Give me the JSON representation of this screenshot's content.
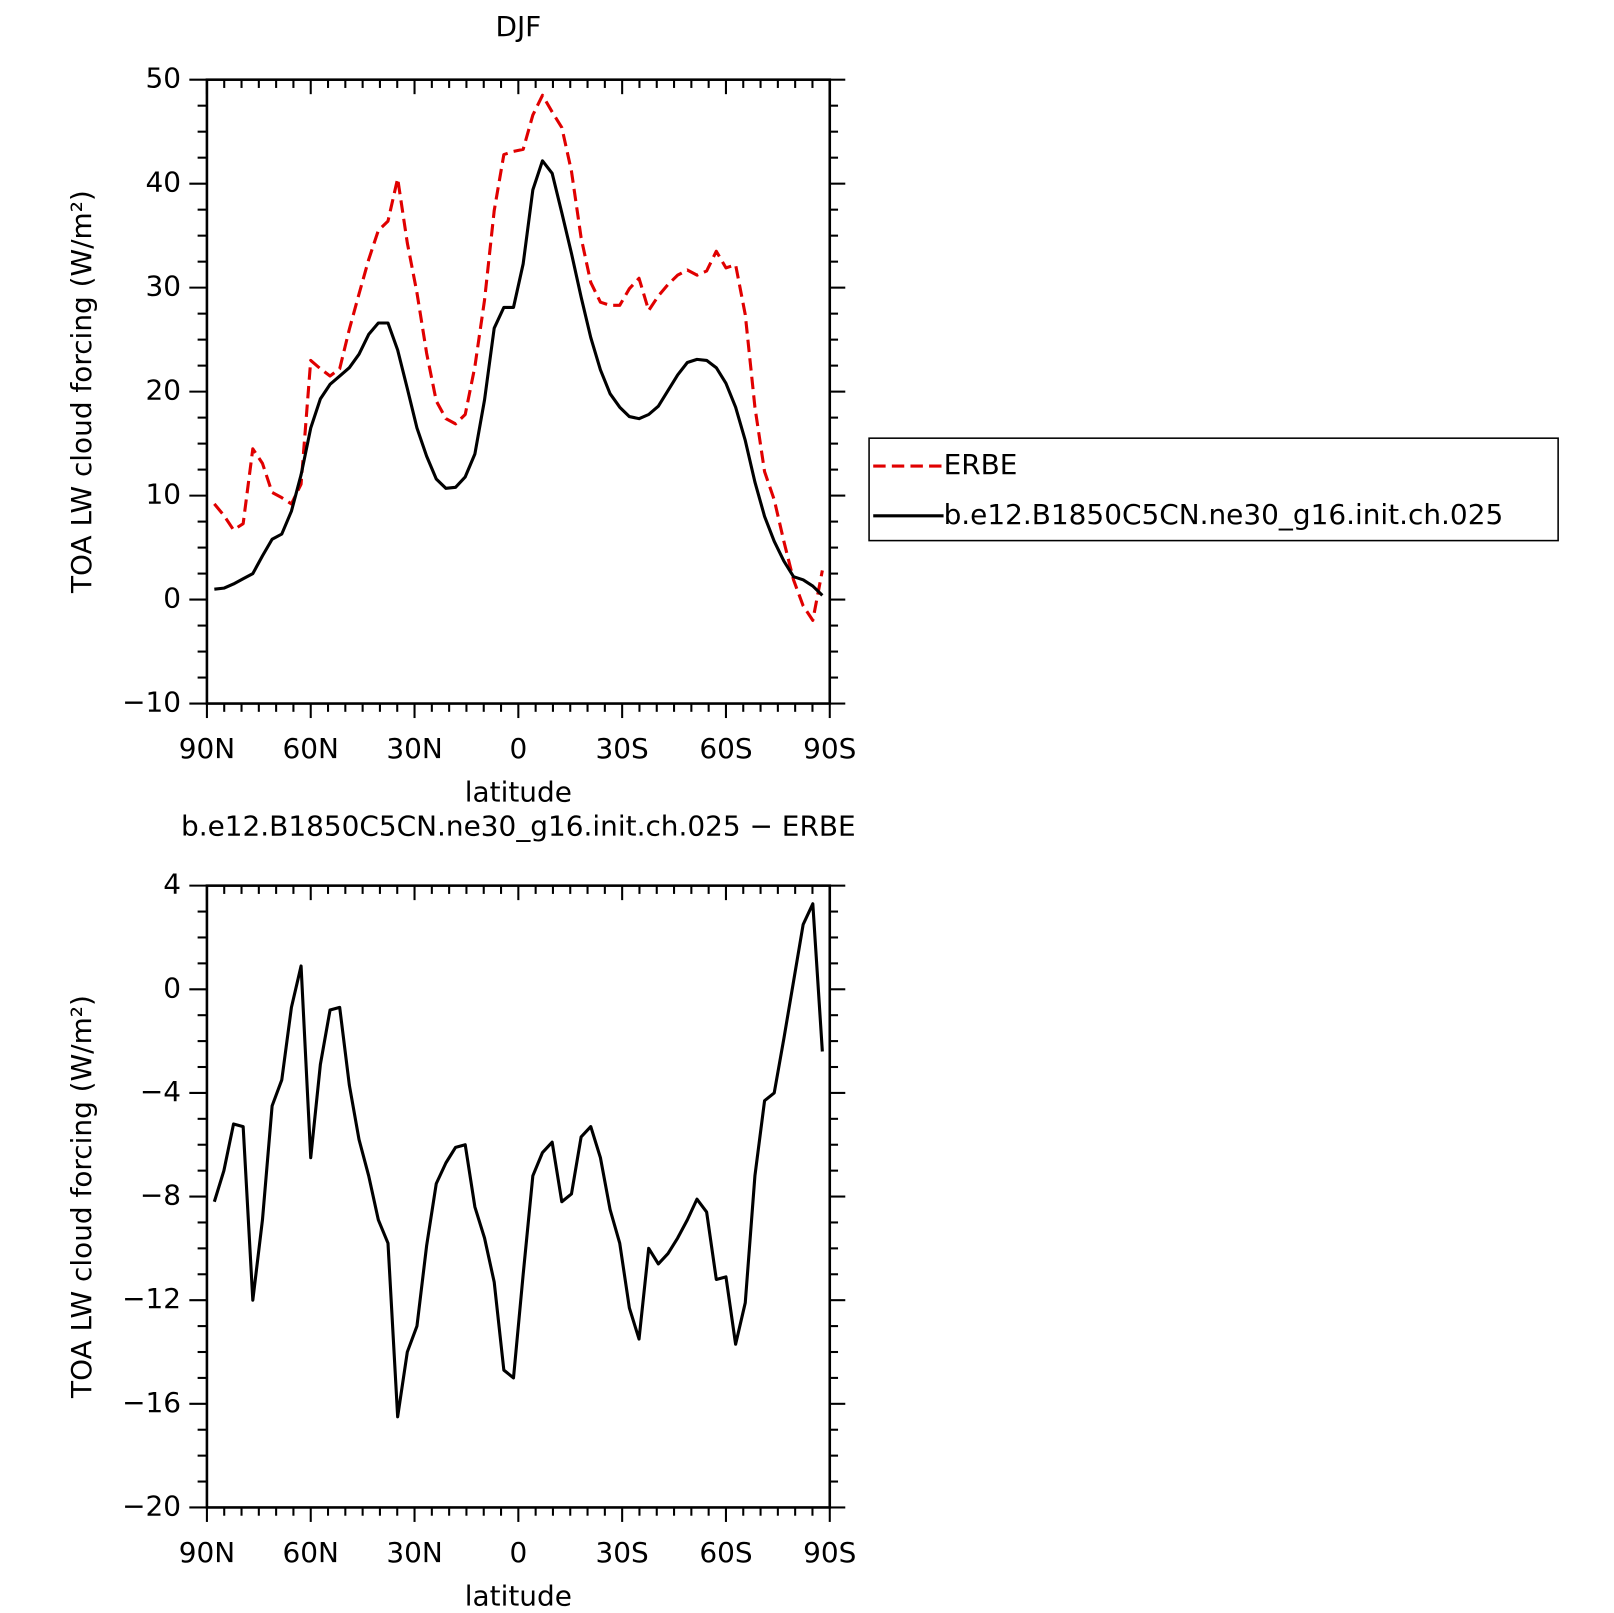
{
  "chart_data": [
    {
      "type": "line",
      "title": "DJF",
      "xlabel": "latitude",
      "ylabel": "TOA LW cloud forcing (W/m²)",
      "x": [
        87.86,
        85.1,
        82.31,
        79.53,
        76.74,
        73.95,
        71.16,
        68.37,
        65.58,
        62.79,
        60.0,
        57.21,
        54.42,
        51.63,
        48.84,
        46.04,
        43.25,
        40.46,
        37.67,
        34.88,
        32.09,
        29.3,
        26.51,
        23.72,
        20.93,
        18.14,
        15.35,
        12.56,
        9.77,
        6.98,
        4.19,
        1.4,
        -1.4,
        -4.19,
        -6.98,
        -9.77,
        -12.56,
        -15.35,
        -18.14,
        -20.93,
        -23.72,
        -26.51,
        -29.3,
        -32.09,
        -34.88,
        -37.67,
        -40.46,
        -43.25,
        -46.04,
        -48.84,
        -51.63,
        -54.42,
        -57.21,
        -60.0,
        -62.79,
        -65.58,
        -68.37,
        -71.16,
        -73.95,
        -76.74,
        -79.53,
        -82.31,
        -85.1,
        -87.86
      ],
      "series": [
        {
          "name": "ERBE",
          "color": "#e00000",
          "dash": true,
          "values": [
            9.2,
            8.1,
            6.7,
            7.3,
            14.5,
            13.1,
            10.3,
            9.8,
            9.2,
            11.1,
            23.0,
            22.2,
            21.5,
            22.2,
            26.0,
            29.4,
            32.7,
            35.5,
            36.4,
            40.5,
            34.3,
            29.5,
            23.7,
            19.1,
            17.4,
            16.9,
            17.8,
            22.4,
            28.8,
            37.4,
            42.8,
            43.1,
            43.3,
            46.6,
            48.5,
            46.9,
            45.4,
            41.2,
            34.8,
            30.5,
            28.6,
            28.3,
            28.3,
            29.9,
            30.9,
            27.8,
            29.2,
            30.3,
            31.2,
            31.7,
            31.2,
            31.6,
            33.5,
            31.9,
            32.2,
            27.4,
            18.5,
            12.3,
            9.6,
            5.6,
            1.9,
            -0.6,
            -2.0,
            2.8
          ]
        },
        {
          "name": "b.e12.B1850C5CN.ne30_g16.init.ch.025",
          "color": "#000000",
          "dash": false,
          "values": [
            1.0,
            1.1,
            1.5,
            2.0,
            2.5,
            4.2,
            5.8,
            6.3,
            8.5,
            12.0,
            16.5,
            19.3,
            20.7,
            21.5,
            22.3,
            23.6,
            25.5,
            26.6,
            26.6,
            24.0,
            20.3,
            16.5,
            13.8,
            11.6,
            10.7,
            10.8,
            11.8,
            14.0,
            19.2,
            26.1,
            28.1,
            28.1,
            32.3,
            39.4,
            42.2,
            41.0,
            37.2,
            33.3,
            29.1,
            25.2,
            22.1,
            19.8,
            18.5,
            17.6,
            17.4,
            17.8,
            18.6,
            20.1,
            21.6,
            22.8,
            23.1,
            23.0,
            22.3,
            20.8,
            18.5,
            15.3,
            11.3,
            8.0,
            5.6,
            3.7,
            2.2,
            1.9,
            1.3,
            0.4
          ]
        }
      ],
      "xlim": [
        90,
        -90
      ],
      "xticks": [
        {
          "value": 90,
          "label": "90N"
        },
        {
          "value": 60,
          "label": "60N"
        },
        {
          "value": 30,
          "label": "30N"
        },
        0,
        {
          "value": -30,
          "label": "30S"
        },
        {
          "value": -60,
          "label": "60S"
        },
        {
          "value": -90,
          "label": "90S"
        }
      ],
      "ylim": [
        -10,
        50
      ],
      "yticks": [
        {
          "value": -10,
          "label": "−10"
        },
        0,
        10,
        20,
        30,
        40,
        50
      ],
      "legend": "right"
    },
    {
      "type": "line",
      "title": "b.e12.B1850C5CN.ne30_g16.init.ch.025 − ERBE",
      "xlabel": "latitude",
      "ylabel": "TOA LW cloud forcing (W/m²)",
      "x": [
        87.86,
        85.1,
        82.31,
        79.53,
        76.74,
        73.95,
        71.16,
        68.37,
        65.58,
        62.79,
        60.0,
        57.21,
        54.42,
        51.63,
        48.84,
        46.04,
        43.25,
        40.46,
        37.67,
        34.88,
        32.09,
        29.3,
        26.51,
        23.72,
        20.93,
        18.14,
        15.35,
        12.56,
        9.77,
        6.98,
        4.19,
        1.4,
        -1.4,
        -4.19,
        -6.98,
        -9.77,
        -12.56,
        -15.35,
        -18.14,
        -20.93,
        -23.72,
        -26.51,
        -29.3,
        -32.09,
        -34.88,
        -37.67,
        -40.46,
        -43.25,
        -46.04,
        -48.84,
        -51.63,
        -54.42,
        -57.21,
        -60.0,
        -62.79,
        -65.58,
        -68.37,
        -71.16,
        -73.95,
        -76.74,
        -79.53,
        -82.31,
        -85.1,
        -87.86
      ],
      "series": [
        {
          "color": "#000000",
          "dash": false,
          "values": [
            -8.2,
            -7.0,
            -5.2,
            -5.3,
            -12.0,
            -8.9,
            -4.5,
            -3.5,
            -0.7,
            0.9,
            -6.5,
            -2.9,
            -0.8,
            -0.7,
            -3.7,
            -5.8,
            -7.2,
            -8.9,
            -9.8,
            -16.5,
            -14.0,
            -13.0,
            -9.9,
            -7.5,
            -6.7,
            -6.1,
            -6.0,
            -8.4,
            -9.6,
            -11.3,
            -14.7,
            -15.0,
            -11.0,
            -7.2,
            -6.3,
            -5.9,
            -8.2,
            -7.9,
            -5.7,
            -5.3,
            -6.5,
            -8.5,
            -9.8,
            -12.3,
            -13.5,
            -10.0,
            -10.6,
            -10.2,
            -9.6,
            -8.9,
            -8.1,
            -8.6,
            -11.2,
            -11.1,
            -13.7,
            -12.1,
            -7.2,
            -4.3,
            -4.0,
            -1.9,
            0.3,
            2.5,
            3.3,
            -2.4
          ]
        }
      ],
      "xlim": [
        90,
        -90
      ],
      "xticks": [
        {
          "value": 90,
          "label": "90N"
        },
        {
          "value": 60,
          "label": "60N"
        },
        {
          "value": 30,
          "label": "30N"
        },
        0,
        {
          "value": -30,
          "label": "30S"
        },
        {
          "value": -60,
          "label": "60S"
        },
        {
          "value": -90,
          "label": "90S"
        }
      ],
      "ylim": [
        -20,
        4
      ],
      "yticks": [
        {
          "value": -20,
          "label": "−20"
        },
        {
          "value": -16,
          "label": "−16"
        },
        {
          "value": -12,
          "label": "−12"
        },
        {
          "value": -8,
          "label": "−8"
        },
        {
          "value": -4,
          "label": "−4"
        },
        0,
        4
      ]
    }
  ]
}
